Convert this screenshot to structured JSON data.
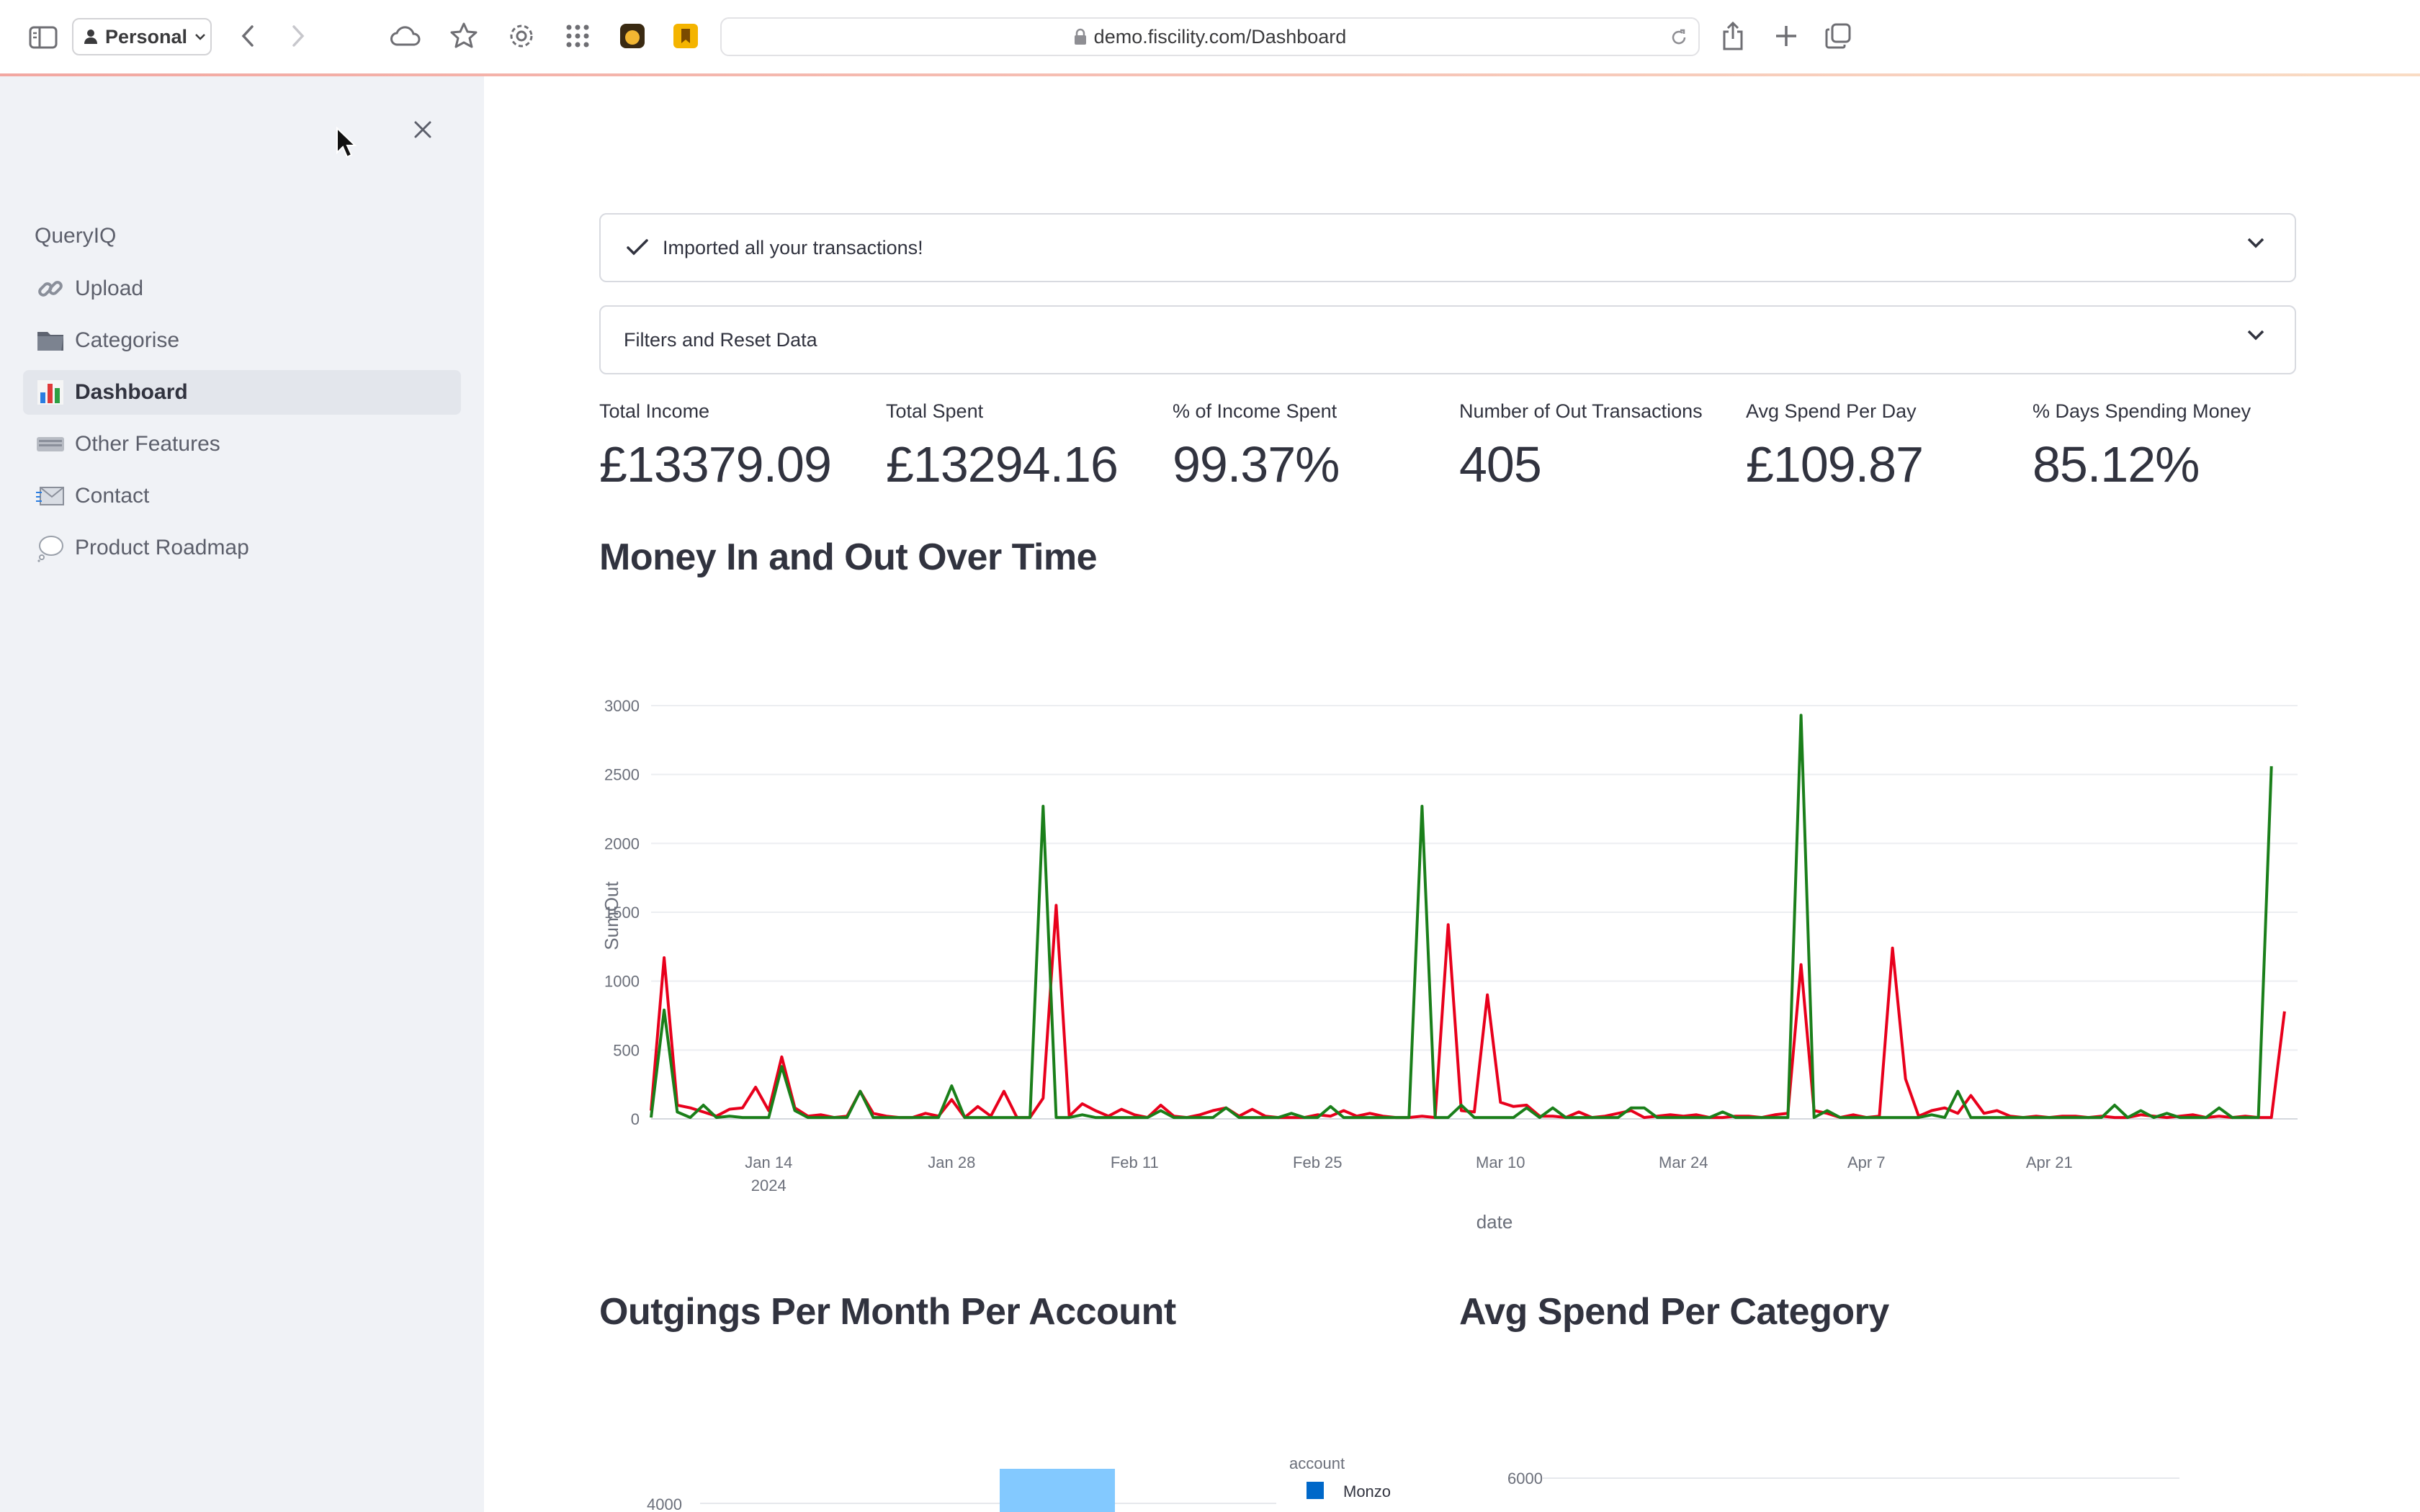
{
  "browser": {
    "profile": "Personal",
    "url": "demo.fiscility.com/Dashboard"
  },
  "sidebar": {
    "app_name": "QueryIQ",
    "items": [
      {
        "label": "Upload",
        "icon": "link-icon",
        "active": false
      },
      {
        "label": "Categorise",
        "icon": "folder-icon",
        "active": false
      },
      {
        "label": "Dashboard",
        "icon": "bar-chart-icon",
        "active": true
      },
      {
        "label": "Other Features",
        "icon": "keyboard-icon",
        "active": false
      },
      {
        "label": "Contact",
        "icon": "envelope-icon",
        "active": false
      },
      {
        "label": "Product Roadmap",
        "icon": "thought-bubble-icon",
        "active": false
      }
    ]
  },
  "main": {
    "status_expander": "Imported all your transactions!",
    "filters_expander": "Filters and Reset Data",
    "metrics": [
      {
        "label": "Total Income",
        "value": "£13379.09"
      },
      {
        "label": "Total Spent",
        "value": "£13294.16"
      },
      {
        "label": "% of Income Spent",
        "value": "99.37%"
      },
      {
        "label": "Number of Out Transactions",
        "value": "405"
      },
      {
        "label": "Avg Spend Per Day",
        "value": "£109.87"
      },
      {
        "label": "% Days Spending Money",
        "value": "85.12%"
      }
    ],
    "section1_title": "Money In and Out Over Time",
    "section2_title": "Outgings Per Month Per Account",
    "section3_title": "Avg Spend Per Category"
  },
  "chart_data": [
    {
      "type": "line",
      "title": "",
      "xlabel": "date",
      "ylabel": "SumOut",
      "ylim": [
        0,
        3000
      ],
      "yticks": [
        "0",
        "500",
        "1000",
        "1500",
        "2000",
        "2500",
        "3000"
      ],
      "xticks": [
        "Jan 14",
        "Jan 28",
        "Feb 11",
        "Feb 25",
        "Mar 10",
        "Mar 24",
        "Apr 7",
        "Apr 21"
      ],
      "xtick_sub": "2024",
      "x_start": "2024-01-05",
      "grid": true,
      "colors": {
        "red": "#e8001c",
        "green": "#1a7f1a"
      },
      "series": [
        {
          "color": "#e8001c",
          "points": [
            [
              0,
              60
            ],
            [
              1,
              1170
            ],
            [
              2,
              100
            ],
            [
              3,
              80
            ],
            [
              4,
              50
            ],
            [
              5,
              20
            ],
            [
              6,
              70
            ],
            [
              7,
              80
            ],
            [
              8,
              230
            ],
            [
              9,
              60
            ],
            [
              10,
              450
            ],
            [
              11,
              80
            ],
            [
              12,
              20
            ],
            [
              13,
              30
            ],
            [
              14,
              10
            ],
            [
              15,
              20
            ],
            [
              16,
              200
            ],
            [
              17,
              40
            ],
            [
              18,
              20
            ],
            [
              19,
              10
            ],
            [
              20,
              10
            ],
            [
              21,
              40
            ],
            [
              22,
              20
            ],
            [
              23,
              140
            ],
            [
              24,
              10
            ],
            [
              25,
              90
            ],
            [
              26,
              20
            ],
            [
              27,
              200
            ],
            [
              28,
              10
            ],
            [
              29,
              10
            ],
            [
              30,
              150
            ],
            [
              31,
              1550
            ],
            [
              32,
              20
            ],
            [
              33,
              110
            ],
            [
              34,
              60
            ],
            [
              35,
              20
            ],
            [
              36,
              70
            ],
            [
              37,
              30
            ],
            [
              38,
              10
            ],
            [
              39,
              100
            ],
            [
              40,
              20
            ],
            [
              41,
              10
            ],
            [
              42,
              30
            ],
            [
              43,
              60
            ],
            [
              44,
              80
            ],
            [
              45,
              20
            ],
            [
              46,
              70
            ],
            [
              47,
              20
            ],
            [
              48,
              10
            ],
            [
              49,
              10
            ],
            [
              50,
              10
            ],
            [
              51,
              30
            ],
            [
              52,
              20
            ],
            [
              53,
              60
            ],
            [
              54,
              20
            ],
            [
              55,
              40
            ],
            [
              56,
              20
            ],
            [
              57,
              10
            ],
            [
              58,
              10
            ],
            [
              59,
              20
            ],
            [
              60,
              10
            ],
            [
              61,
              1410
            ],
            [
              62,
              60
            ],
            [
              63,
              50
            ],
            [
              64,
              900
            ],
            [
              65,
              120
            ],
            [
              66,
              90
            ],
            [
              67,
              100
            ],
            [
              68,
              20
            ],
            [
              69,
              20
            ],
            [
              70,
              10
            ],
            [
              71,
              50
            ],
            [
              72,
              10
            ],
            [
              73,
              20
            ],
            [
              74,
              40
            ],
            [
              75,
              60
            ],
            [
              76,
              10
            ],
            [
              77,
              20
            ],
            [
              78,
              30
            ],
            [
              79,
              20
            ],
            [
              80,
              30
            ],
            [
              81,
              10
            ],
            [
              82,
              10
            ],
            [
              83,
              20
            ],
            [
              84,
              20
            ],
            [
              85,
              10
            ],
            [
              86,
              30
            ],
            [
              87,
              40
            ],
            [
              88,
              1120
            ],
            [
              89,
              60
            ],
            [
              90,
              40
            ],
            [
              91,
              10
            ],
            [
              92,
              30
            ],
            [
              93,
              10
            ],
            [
              94,
              20
            ],
            [
              95,
              1240
            ],
            [
              96,
              290
            ],
            [
              97,
              20
            ],
            [
              98,
              60
            ],
            [
              99,
              80
            ],
            [
              100,
              40
            ],
            [
              101,
              170
            ],
            [
              102,
              40
            ],
            [
              103,
              60
            ],
            [
              104,
              20
            ],
            [
              105,
              10
            ],
            [
              106,
              20
            ],
            [
              107,
              10
            ],
            [
              108,
              20
            ],
            [
              109,
              20
            ],
            [
              110,
              10
            ],
            [
              111,
              20
            ],
            [
              112,
              10
            ],
            [
              113,
              10
            ],
            [
              114,
              30
            ],
            [
              115,
              20
            ],
            [
              116,
              10
            ],
            [
              117,
              20
            ],
            [
              118,
              30
            ],
            [
              119,
              10
            ],
            [
              120,
              20
            ],
            [
              121,
              10
            ],
            [
              122,
              20
            ],
            [
              123,
              10
            ],
            [
              124,
              10
            ],
            [
              125,
              780
            ]
          ]
        },
        {
          "color": "#1a7f1a",
          "points": [
            [
              0,
              10
            ],
            [
              1,
              790
            ],
            [
              2,
              50
            ],
            [
              3,
              10
            ],
            [
              4,
              100
            ],
            [
              5,
              10
            ],
            [
              6,
              20
            ],
            [
              7,
              10
            ],
            [
              8,
              10
            ],
            [
              9,
              10
            ],
            [
              10,
              380
            ],
            [
              11,
              60
            ],
            [
              12,
              10
            ],
            [
              13,
              10
            ],
            [
              14,
              10
            ],
            [
              15,
              10
            ],
            [
              16,
              200
            ],
            [
              17,
              10
            ],
            [
              18,
              10
            ],
            [
              19,
              10
            ],
            [
              20,
              10
            ],
            [
              21,
              10
            ],
            [
              22,
              10
            ],
            [
              23,
              240
            ],
            [
              24,
              10
            ],
            [
              25,
              10
            ],
            [
              26,
              10
            ],
            [
              27,
              10
            ],
            [
              28,
              10
            ],
            [
              29,
              10
            ],
            [
              30,
              2270
            ],
            [
              31,
              10
            ],
            [
              32,
              10
            ],
            [
              33,
              30
            ],
            [
              34,
              10
            ],
            [
              35,
              10
            ],
            [
              36,
              10
            ],
            [
              37,
              10
            ],
            [
              38,
              10
            ],
            [
              39,
              60
            ],
            [
              40,
              10
            ],
            [
              41,
              10
            ],
            [
              42,
              10
            ],
            [
              43,
              10
            ],
            [
              44,
              80
            ],
            [
              45,
              10
            ],
            [
              46,
              10
            ],
            [
              47,
              10
            ],
            [
              48,
              10
            ],
            [
              49,
              40
            ],
            [
              50,
              10
            ],
            [
              51,
              10
            ],
            [
              52,
              90
            ],
            [
              53,
              10
            ],
            [
              54,
              10
            ],
            [
              55,
              10
            ],
            [
              56,
              10
            ],
            [
              57,
              10
            ],
            [
              58,
              10
            ],
            [
              59,
              2270
            ],
            [
              60,
              10
            ],
            [
              61,
              10
            ],
            [
              62,
              100
            ],
            [
              63,
              10
            ],
            [
              64,
              10
            ],
            [
              65,
              10
            ],
            [
              66,
              10
            ],
            [
              67,
              80
            ],
            [
              68,
              10
            ],
            [
              69,
              80
            ],
            [
              70,
              10
            ],
            [
              71,
              10
            ],
            [
              72,
              10
            ],
            [
              73,
              10
            ],
            [
              74,
              10
            ],
            [
              75,
              80
            ],
            [
              76,
              80
            ],
            [
              77,
              10
            ],
            [
              78,
              10
            ],
            [
              79,
              10
            ],
            [
              80,
              10
            ],
            [
              81,
              10
            ],
            [
              82,
              50
            ],
            [
              83,
              10
            ],
            [
              84,
              10
            ],
            [
              85,
              10
            ],
            [
              86,
              10
            ],
            [
              87,
              10
            ],
            [
              88,
              2930
            ],
            [
              89,
              10
            ],
            [
              90,
              60
            ],
            [
              91,
              10
            ],
            [
              92,
              10
            ],
            [
              93,
              10
            ],
            [
              94,
              10
            ],
            [
              95,
              10
            ],
            [
              96,
              10
            ],
            [
              97,
              10
            ],
            [
              98,
              30
            ],
            [
              99,
              10
            ],
            [
              100,
              200
            ],
            [
              101,
              10
            ],
            [
              102,
              10
            ],
            [
              103,
              10
            ],
            [
              104,
              10
            ],
            [
              105,
              10
            ],
            [
              106,
              10
            ],
            [
              107,
              10
            ],
            [
              108,
              10
            ],
            [
              109,
              10
            ],
            [
              110,
              10
            ],
            [
              111,
              10
            ],
            [
              112,
              100
            ],
            [
              113,
              10
            ],
            [
              114,
              60
            ],
            [
              115,
              10
            ],
            [
              116,
              40
            ],
            [
              117,
              10
            ],
            [
              118,
              10
            ],
            [
              119,
              10
            ],
            [
              120,
              80
            ],
            [
              121,
              10
            ],
            [
              122,
              10
            ],
            [
              123,
              10
            ],
            [
              124,
              2560
            ]
          ]
        }
      ]
    },
    {
      "type": "bar",
      "title": "",
      "legend_title": "account",
      "legend": [
        "Monzo"
      ],
      "yticks": [
        "4000"
      ],
      "colors": {
        "light_blue": "#83c9ff",
        "blue": "#0068c9"
      }
    },
    {
      "type": "bar",
      "title": "",
      "yticks": [
        "6000"
      ]
    }
  ]
}
